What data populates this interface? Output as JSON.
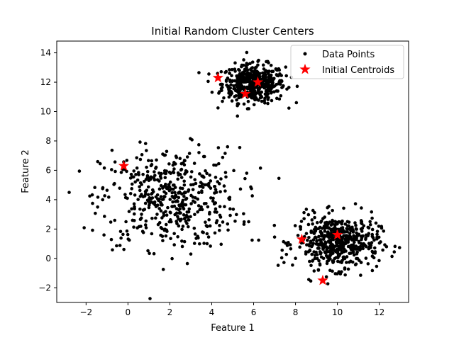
{
  "chart_data": {
    "type": "scatter",
    "title": "Initial Random Cluster Centers",
    "xlabel": "Feature 1",
    "ylabel": "Feature 2",
    "xlim": [
      -3.4,
      13.4
    ],
    "ylim": [
      -3.0,
      14.8
    ],
    "xticks": [
      -2,
      0,
      2,
      4,
      6,
      8,
      10,
      12
    ],
    "yticks": [
      -2,
      0,
      2,
      4,
      6,
      8,
      10,
      12,
      14
    ],
    "grid": false,
    "legend_position": "top-right",
    "series": [
      {
        "name": "Data Points",
        "marker": "dot",
        "color": "#000000",
        "clusters": [
          {
            "center": [
              6.0,
              11.9
            ],
            "spread": [
              0.75,
              0.65
            ],
            "count": 480
          },
          {
            "center": [
              2.0,
              4.1
            ],
            "spread": [
              1.65,
              1.7
            ],
            "count": 500
          },
          {
            "center": [
              10.0,
              1.1
            ],
            "spread": [
              1.0,
              0.9
            ],
            "count": 520
          }
        ]
      },
      {
        "name": "Initial Centroids",
        "marker": "star",
        "color": "#ff0000",
        "points": [
          {
            "x": 4.3,
            "y": 12.3
          },
          {
            "x": 6.2,
            "y": 12.0
          },
          {
            "x": 5.6,
            "y": 11.2
          },
          {
            "x": -0.2,
            "y": 6.3
          },
          {
            "x": 8.3,
            "y": 1.3
          },
          {
            "x": 10.0,
            "y": 1.6
          },
          {
            "x": 9.3,
            "y": -1.5
          }
        ]
      }
    ]
  }
}
